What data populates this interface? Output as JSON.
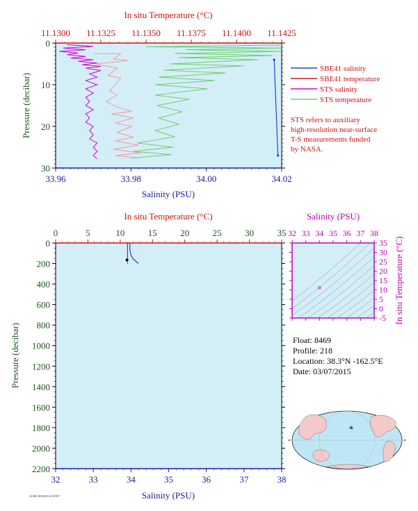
{
  "colors": {
    "plot_bg": "#d4eef8",
    "salinity_axis": "#1a1aa8",
    "temperature_axis": "#cc1111",
    "pressure_axis": "#1f4f1f",
    "sbe_salinity": "#2b3fd6",
    "sbe_temperature": "#d11a1a",
    "sts_salinity": "#d400d4",
    "sts_temperature": "#6ccf6c",
    "sts_temperature_alt": "#f59a9a",
    "ts_axis": "#bb00bb",
    "land": "#f3c9c9",
    "ocean": "#bfe6f4"
  },
  "legend": [
    {
      "label": "SBE41 salinity",
      "color": "#2b3fd6"
    },
    {
      "label": "SBE41 temperature",
      "color": "#d11a1a"
    },
    {
      "label": "STS salinity",
      "color": "#d400d4"
    },
    {
      "label": "STS temperature",
      "color": "#6ccf6c"
    }
  ],
  "note_lines": [
    "STS refers to auxiliary",
    "high-resolution near-surface",
    "T-S measurements funded",
    "by NASA."
  ],
  "info": {
    "float": "Float:  8469",
    "profile": "Profile:  218",
    "location": "Location:  38.3°N  -162.5°E",
    "date": "Date:  03/07/2015"
  },
  "footer_code": "AOML/SIO8469 20150307",
  "chart_data": [
    {
      "type": "line",
      "id": "near-surface-profile",
      "title_top": "In situ Temperature (°C)",
      "xlabel": "Salinity (PSU)",
      "ylabel": "Pressure (decibar)",
      "salinity_range": [
        33.96,
        34.02
      ],
      "salinity_ticks": [
        "33.96",
        "33.98",
        "34.00",
        "34.02"
      ],
      "temperature_range": [
        11.13,
        11.1425
      ],
      "temperature_ticks": [
        "11.1300",
        "11.1325",
        "11.1350",
        "11.1375",
        "11.1400",
        "11.1425"
      ],
      "pressure_range": [
        0,
        30
      ],
      "pressure_ticks": [
        "0",
        "10",
        "20",
        "30"
      ],
      "series": [
        {
          "name": "STS salinity",
          "color": "#d400d4",
          "x_unit": "salinity",
          "points": [
            [
              33.963,
              0.4
            ],
            [
              33.97,
              0.8
            ],
            [
              33.962,
              1.2
            ],
            [
              33.968,
              1.6
            ],
            [
              33.961,
              2.0
            ],
            [
              33.966,
              2.4
            ],
            [
              33.963,
              2.8
            ],
            [
              33.968,
              3.2
            ],
            [
              33.964,
              3.6
            ],
            [
              33.97,
              4.0
            ],
            [
              33.966,
              4.4
            ],
            [
              33.971,
              4.8
            ],
            [
              33.967,
              5.2
            ],
            [
              33.972,
              5.6
            ],
            [
              33.968,
              6.0
            ],
            [
              33.972,
              6.6
            ],
            [
              33.969,
              7.4
            ],
            [
              33.971,
              8.2
            ],
            [
              33.968,
              9.0
            ],
            [
              33.971,
              10.0
            ],
            [
              33.968,
              11.0
            ],
            [
              33.97,
              12.0
            ],
            [
              33.968,
              13.0
            ],
            [
              33.969,
              14.0
            ],
            [
              33.968,
              15.0
            ],
            [
              33.97,
              16.0
            ],
            [
              33.968,
              17.0
            ],
            [
              33.969,
              18.0
            ],
            [
              33.968,
              19.0
            ],
            [
              33.97,
              20.0
            ],
            [
              33.969,
              21.0
            ],
            [
              33.97,
              22.0
            ],
            [
              33.969,
              23.0
            ],
            [
              33.971,
              24.0
            ],
            [
              33.97,
              25.0
            ],
            [
              33.971,
              26.0
            ],
            [
              33.97,
              27.0
            ],
            [
              33.971,
              27.8
            ]
          ]
        },
        {
          "name": "STS temperature (pink)",
          "color": "#f59a9a",
          "x_unit": "temperature",
          "points": [
            [
              11.1321,
              2.5
            ],
            [
              11.1336,
              2.6
            ],
            [
              11.1332,
              3.8
            ],
            [
              11.134,
              4.2
            ],
            [
              11.1322,
              5.0
            ],
            [
              11.1334,
              6.0
            ],
            [
              11.1329,
              7.8
            ],
            [
              11.1336,
              8.4
            ],
            [
              11.133,
              11.5
            ],
            [
              11.1334,
              12.5
            ],
            [
              11.1328,
              14.0
            ],
            [
              11.1333,
              15.2
            ],
            [
              11.1342,
              16.4
            ],
            [
              11.1331,
              17.0
            ],
            [
              11.1343,
              18.0
            ],
            [
              11.1333,
              19.2
            ],
            [
              11.1342,
              20.0
            ],
            [
              11.1334,
              21.5
            ],
            [
              11.1343,
              22.6
            ],
            [
              11.1333,
              23.5
            ],
            [
              11.1346,
              24.5
            ],
            [
              11.1332,
              25.5
            ],
            [
              11.1347,
              26.4
            ],
            [
              11.1333,
              27.0
            ],
            [
              11.1346,
              27.6
            ]
          ]
        },
        {
          "name": "STS temperature",
          "color": "#6ccf6c",
          "x_unit": "temperature",
          "points": [
            [
              11.1425,
              0.5
            ],
            [
              11.135,
              0.9
            ],
            [
              11.1425,
              1.2
            ],
            [
              11.1372,
              1.6
            ],
            [
              11.1425,
              2.0
            ],
            [
              11.1366,
              2.5
            ],
            [
              11.142,
              3.0
            ],
            [
              11.1368,
              3.5
            ],
            [
              11.1412,
              4.0
            ],
            [
              11.1363,
              5.0
            ],
            [
              11.1404,
              5.5
            ],
            [
              11.136,
              6.5
            ],
            [
              11.1394,
              7.2
            ],
            [
              11.1357,
              8.2
            ],
            [
              11.1388,
              9.0
            ],
            [
              11.1355,
              10.0
            ],
            [
              11.1384,
              11.0
            ],
            [
              11.1355,
              12.5
            ],
            [
              11.1374,
              13.5
            ],
            [
              11.1356,
              15.0
            ],
            [
              11.137,
              16.5
            ],
            [
              11.1357,
              18.0
            ],
            [
              11.1368,
              19.5
            ],
            [
              11.1355,
              21.0
            ],
            [
              11.1366,
              22.5
            ],
            [
              11.1345,
              24.0
            ],
            [
              11.1365,
              25.0
            ],
            [
              11.1343,
              26.0
            ],
            [
              11.1364,
              26.8
            ],
            [
              11.1342,
              27.6
            ]
          ]
        },
        {
          "name": "SBE41 salinity",
          "color": "#2b3fd6",
          "x_unit": "salinity",
          "points": [
            [
              34.018,
              4.0
            ],
            [
              34.019,
              27.0
            ]
          ]
        }
      ]
    },
    {
      "type": "line",
      "id": "full-profile",
      "title_top": "In situ Temperature (°C)",
      "xlabel": "Salinity (PSU)",
      "ylabel": "Pressure (decibar)",
      "salinity_range": [
        32,
        38
      ],
      "salinity_ticks": [
        "32",
        "33",
        "34",
        "35",
        "36",
        "37",
        "38"
      ],
      "temperature_range": [
        0,
        35
      ],
      "temperature_ticks": [
        "0",
        "5",
        "10",
        "15",
        "20",
        "25",
        "30",
        "35"
      ],
      "pressure_range": [
        0,
        2200
      ],
      "pressure_ticks": [
        "0",
        "200",
        "400",
        "600",
        "800",
        "1000",
        "1200",
        "1400",
        "1600",
        "1800",
        "2000",
        "2200"
      ],
      "series": [
        {
          "name": "SBE41 salinity",
          "color": "#2b3fd6",
          "x_unit": "salinity",
          "points": [
            [
              33.97,
              0
            ],
            [
              33.97,
              60
            ],
            [
              33.99,
              110
            ],
            [
              34.05,
              150
            ],
            [
              34.12,
              175
            ],
            [
              34.2,
              200
            ]
          ]
        },
        {
          "name": "SBE41 temperature",
          "color": "#d11a1a",
          "x_unit": "temperature",
          "points": [
            [
              11.14,
              0
            ],
            [
              11.13,
              60
            ],
            [
              11.12,
              140
            ],
            [
              11.05,
              165
            ],
            [
              11.1,
              185
            ],
            [
              11.15,
              200
            ]
          ]
        }
      ]
    },
    {
      "type": "scatter",
      "id": "ts-diagram",
      "title_top": "Salinity (PSU)",
      "ylabel": "In situ Temperature (°C)",
      "salinity_range": [
        32,
        38
      ],
      "salinity_ticks": [
        "32",
        "33",
        "34",
        "35",
        "36",
        "37",
        "38"
      ],
      "temperature_range": [
        -5,
        35
      ],
      "temperature_ticks": [
        "-5",
        "0",
        "5",
        "10",
        "15",
        "20",
        "25",
        "30",
        "35"
      ],
      "points": [
        [
          34.0,
          11.1
        ]
      ],
      "color": "#d400d4"
    },
    {
      "type": "map",
      "id": "location-map",
      "marker": {
        "lat": 38.3,
        "lon": -162.5
      },
      "marker_color": "#2b3fd6"
    }
  ]
}
